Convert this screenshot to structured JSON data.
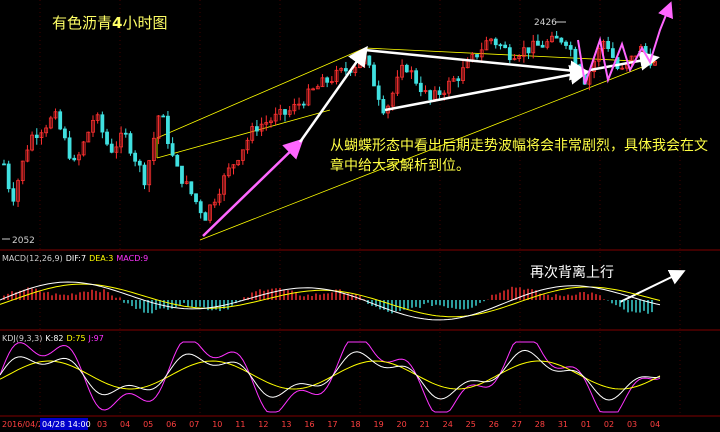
{
  "title_prefix": "有色沥青",
  "title_bold": "4",
  "title_suffix": "小时图",
  "annotation_main": "从蝴蝶形态中看出后期走势波幅将会非常剧烈，具体我会在文章中给大家解析到位。",
  "annotation_macd": "再次背离上行",
  "colors": {
    "background": "#000000",
    "bull_candle": "#ff3030",
    "bear_candle": "#40e0e0",
    "pattern_line": "#ffff00",
    "pattern_arrow": "#ff66ff",
    "dif_line": "#ffffff",
    "dea_line": "#ffff00",
    "j_line": "#ff33ff",
    "grid": "#800000"
  },
  "chart_data": [
    {
      "type": "candlestick",
      "title": "有色沥青4小时图",
      "price_labels": {
        "high": "2426",
        "low": "2052"
      },
      "ylim": [
        2040,
        2470
      ],
      "candle_count": 140,
      "trend_arrows": [
        {
          "color": "pink"
        },
        {
          "color": "white"
        }
      ],
      "legend": "none"
    },
    {
      "type": "bar",
      "name": "MACD(12,26,9)",
      "header": "MACD(12,26,9)",
      "dif_label": "DIF:7",
      "dea_label": "DEA:3",
      "macd_label": "MACD:9",
      "values": {
        "DIF": 7,
        "DEA": 3,
        "MACD": 9
      }
    },
    {
      "type": "line",
      "name": "KDJ(9,3,3)",
      "header": "KDJ(9,3,3)",
      "k_label": "K:82",
      "d_label": "D:75",
      "j_label": "J:97",
      "values": {
        "K": 82,
        "D": 75,
        "J": 97
      }
    }
  ],
  "x_axis": {
    "start_label": "2016/04/28",
    "cursor_label": "04/28 14:00",
    "ticks": [
      "03",
      "04",
      "05",
      "06",
      "07",
      "10",
      "11",
      "12",
      "13",
      "16",
      "17",
      "18",
      "19",
      "20",
      "21",
      "24",
      "25",
      "26",
      "27",
      "28",
      "31",
      "01",
      "02",
      "03",
      "04"
    ]
  }
}
